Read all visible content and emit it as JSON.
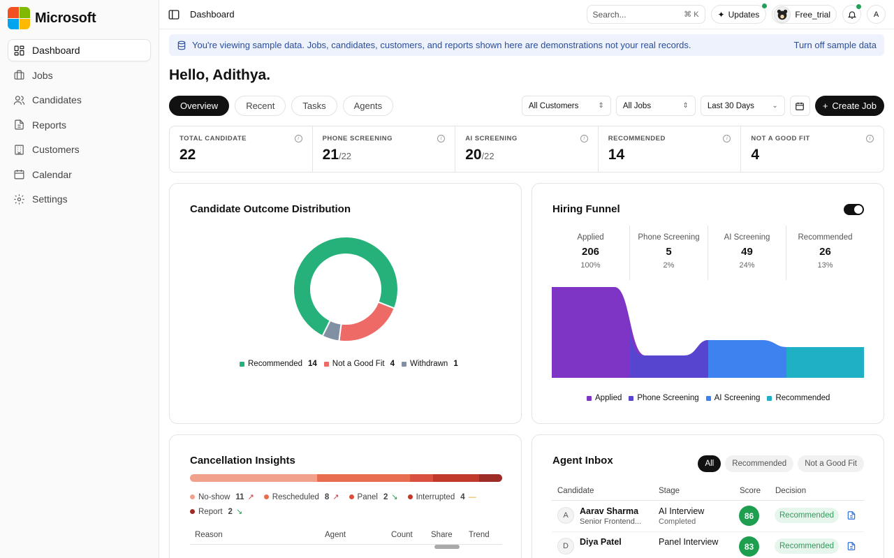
{
  "brand": {
    "name": "Microsoft"
  },
  "sidebar": {
    "items": [
      {
        "label": "Dashboard",
        "icon": "dashboard-icon",
        "active": true
      },
      {
        "label": "Jobs",
        "icon": "briefcase-icon"
      },
      {
        "label": "Candidates",
        "icon": "users-icon"
      },
      {
        "label": "Reports",
        "icon": "document-icon"
      },
      {
        "label": "Customers",
        "icon": "building-icon"
      },
      {
        "label": "Calendar",
        "icon": "calendar-icon"
      },
      {
        "label": "Settings",
        "icon": "gear-icon"
      }
    ]
  },
  "topbar": {
    "title": "Dashboard",
    "search_placeholder": "Search...",
    "search_shortcut": "⌘ K",
    "updates_label": "Updates",
    "profile_name": "Free_trial",
    "avatar_letter": "A"
  },
  "banner": {
    "text": "You're viewing sample data. Jobs, candidates, customers, and reports shown here are demonstrations not your real records.",
    "link": "Turn off sample data"
  },
  "greeting": "Hello, Adithya.",
  "tabs": [
    {
      "label": "Overview",
      "active": true
    },
    {
      "label": "Recent"
    },
    {
      "label": "Tasks"
    },
    {
      "label": "Agents"
    }
  ],
  "filters": {
    "customers": "All Customers",
    "jobs": "All Jobs",
    "range": "Last 30 Days",
    "create_label": "Create Job"
  },
  "stats": [
    {
      "label": "TOTAL CANDIDATE",
      "value": "22",
      "suffix": ""
    },
    {
      "label": "PHONE SCREENING",
      "value": "21",
      "suffix": "/22"
    },
    {
      "label": "AI SCREENING",
      "value": "20",
      "suffix": "/22"
    },
    {
      "label": "RECOMMENDED",
      "value": "14",
      "suffix": ""
    },
    {
      "label": "NOT A GOOD FIT",
      "value": "4",
      "suffix": ""
    }
  ],
  "outcome": {
    "title": "Candidate Outcome Distribution",
    "legend": [
      {
        "label": "Recommended",
        "count": "14",
        "color": "#26b17a"
      },
      {
        "label": "Not a Good Fit",
        "count": "4",
        "color": "#ee6a66"
      },
      {
        "label": "Withdrawn",
        "count": "1",
        "color": "#8290a3"
      }
    ]
  },
  "funnel": {
    "title": "Hiring Funnel",
    "stages": [
      {
        "label": "Applied",
        "value": "206",
        "pct": "100%",
        "color": "#7e35c6"
      },
      {
        "label": "Phone Screening",
        "value": "5",
        "pct": "2%",
        "color": "#5745d0"
      },
      {
        "label": "AI Screening",
        "value": "49",
        "pct": "24%",
        "color": "#3d82ef"
      },
      {
        "label": "Recommended",
        "value": "26",
        "pct": "13%",
        "color": "#20b0c5"
      }
    ]
  },
  "cancellation": {
    "title": "Cancellation Insights",
    "segments": [
      {
        "label": "No-show",
        "count": "11",
        "color": "#f1a08c",
        "trend": "up"
      },
      {
        "label": "Rescheduled",
        "count": "8",
        "color": "#e86d4f",
        "trend": "up"
      },
      {
        "label": "Panel",
        "count": "2",
        "color": "#d9503f",
        "trend": "down"
      },
      {
        "label": "Interrupted",
        "count": "4",
        "color": "#c0392b",
        "trend": "flat"
      },
      {
        "label": "Report",
        "count": "2",
        "color": "#9e2c26",
        "trend": "down"
      }
    ],
    "columns": [
      "Reason",
      "Agent",
      "Count",
      "Share",
      "Trend"
    ]
  },
  "inbox": {
    "title": "Agent Inbox",
    "tabs": [
      {
        "label": "All",
        "active": true
      },
      {
        "label": "Recommended"
      },
      {
        "label": "Not a Good Fit"
      }
    ],
    "columns": [
      "Candidate",
      "Stage",
      "Score",
      "Decision"
    ],
    "rows": [
      {
        "initial": "A",
        "name": "Aarav Sharma",
        "role": "Senior Frontend...",
        "stage": "AI Interview",
        "status": "Completed",
        "score": "86",
        "decision": "Recommended"
      },
      {
        "initial": "D",
        "name": "Diya Patel",
        "role": "",
        "stage": "Panel Interview",
        "status": "",
        "score": "83",
        "decision": "Recommended"
      }
    ]
  }
}
